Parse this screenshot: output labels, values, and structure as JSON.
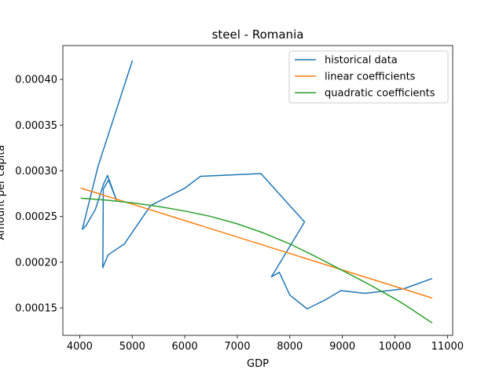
{
  "chart_data": {
    "type": "line",
    "title": "steel - Romania",
    "xlabel": "GDP",
    "ylabel": "Amount per capita",
    "xlim": [
      3680,
      11100
    ],
    "ylim": [
      0.00012,
      0.000437
    ],
    "xticks": [
      4000,
      5000,
      6000,
      7000,
      8000,
      9000,
      10000,
      11000
    ],
    "xtick_labels": [
      "4000",
      "5000",
      "6000",
      "7000",
      "8000",
      "9000",
      "10000",
      "11000"
    ],
    "yticks": [
      0.00015,
      0.0002,
      0.00025,
      0.0003,
      0.00035,
      0.0004
    ],
    "ytick_labels": [
      "0.00015",
      "0.00020",
      "0.00025",
      "0.00030",
      "0.00035",
      "0.00040"
    ],
    "grid": false,
    "legend_position": "top-right",
    "series": [
      {
        "name": "historical data",
        "color": "#1f77b4",
        "points": [
          [
            5000,
            0.00042
          ],
          [
            4350,
            0.000305
          ],
          [
            4050,
            0.000236
          ],
          [
            4120,
            0.00024
          ],
          [
            4300,
            0.000258
          ],
          [
            4450,
            0.000285
          ],
          [
            4530,
            0.000295
          ],
          [
            4700,
            0.000268
          ],
          [
            4550,
            0.00029
          ],
          [
            4450,
            0.00028
          ],
          [
            4440,
            0.000194
          ],
          [
            4540,
            0.000208
          ],
          [
            4850,
            0.00022
          ],
          [
            5350,
            0.000262
          ],
          [
            6000,
            0.000281
          ],
          [
            6300,
            0.000294
          ],
          [
            7450,
            0.000297
          ],
          [
            8280,
            0.000244
          ],
          [
            7650,
            0.000184
          ],
          [
            7800,
            0.000189
          ],
          [
            8000,
            0.000164
          ],
          [
            8330,
            0.000149
          ],
          [
            8680,
            0.000159
          ],
          [
            8970,
            0.000169
          ],
          [
            9430,
            0.000166
          ],
          [
            10170,
            0.000171
          ],
          [
            10700,
            0.000182
          ]
        ]
      },
      {
        "name": "linear coefficients",
        "color": "#ff7f0e",
        "points": [
          [
            4030,
            0.000281
          ],
          [
            10700,
            0.000161
          ]
        ]
      },
      {
        "name": "quadratic coefficients",
        "color": "#2ca02c",
        "points": [
          [
            4030,
            0.00027
          ],
          [
            4500,
            0.000268
          ],
          [
            5000,
            0.000265
          ],
          [
            5500,
            0.000261
          ],
          [
            6000,
            0.000256
          ],
          [
            6500,
            0.00025
          ],
          [
            7000,
            0.000242
          ],
          [
            7500,
            0.000232
          ],
          [
            8000,
            0.00022
          ],
          [
            8500,
            0.000206
          ],
          [
            9000,
            0.000191
          ],
          [
            9500,
            0.000176
          ],
          [
            10000,
            0.00016
          ],
          [
            10200,
            0.000153
          ],
          [
            10700,
            0.000134
          ]
        ]
      }
    ]
  }
}
